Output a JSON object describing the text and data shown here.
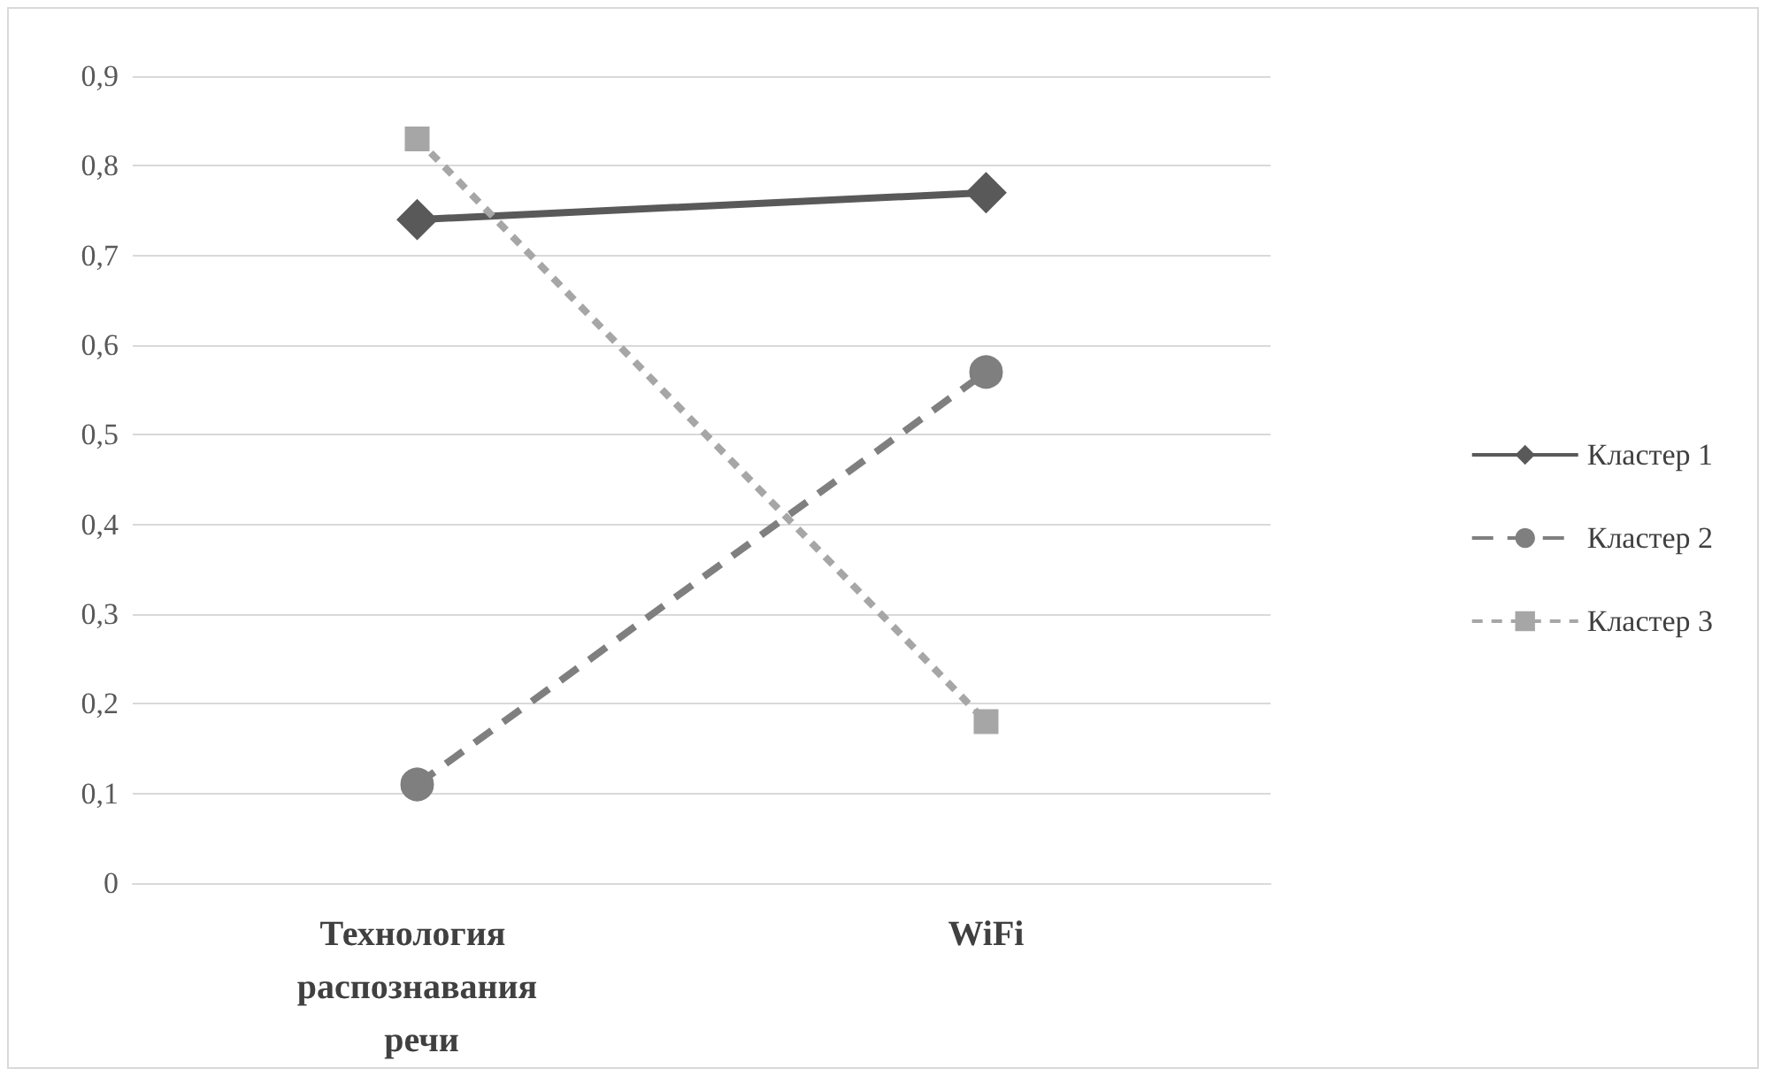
{
  "chart_data": {
    "type": "line",
    "categories": [
      "Технология распознавания речи",
      "WiFi"
    ],
    "series": [
      {
        "name": "Кластер 1",
        "color": "#595959",
        "values": [
          0.74,
          0.77
        ],
        "marker": "diamond",
        "line_style": "solid"
      },
      {
        "name": "Кластер 2",
        "color": "#7f7f7f",
        "values": [
          0.11,
          0.57
        ],
        "marker": "circle",
        "line_style": "dashed"
      },
      {
        "name": "Кластер 3",
        "color": "#a6a6a6",
        "values": [
          0.83,
          0.18
        ],
        "marker": "square",
        "line_style": "dotted"
      }
    ],
    "ylim": [
      0,
      0.9
    ],
    "yticks": [
      0,
      {
        "value": 0.1,
        "label": "0,1"
      },
      {
        "value": 0.2,
        "label": "0,2"
      },
      {
        "value": 0.3,
        "label": "0,3"
      },
      {
        "value": 0.4,
        "label": "0,4"
      },
      {
        "value": 0.5,
        "label": "0,5"
      },
      {
        "value": 0.6,
        "label": "0,6"
      },
      {
        "value": 0.7,
        "label": "0,7"
      },
      {
        "value": 0.8,
        "label": "0,8"
      },
      {
        "value": 0.9,
        "label": "0,9"
      }
    ],
    "grid": "y",
    "legend": "right"
  }
}
